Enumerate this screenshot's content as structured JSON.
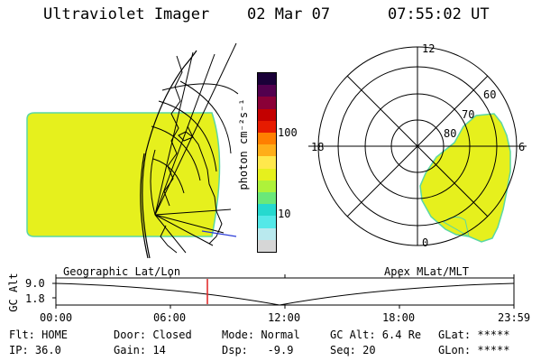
{
  "header": {
    "title": "Ultraviolet Imager",
    "date": "02 Mar 07",
    "time": "07:55:02 UT"
  },
  "colorbar": {
    "unit_label": "photon cm⁻²s⁻¹",
    "tick_100": "100",
    "tick_10": "10",
    "colors": [
      "#d6d6d6",
      "#b9e9ee",
      "#54e8e8",
      "#26d9cf",
      "#6ae879",
      "#aef23a",
      "#e6f01d",
      "#ffe84c",
      "#ffae19",
      "#ff7f00",
      "#e61b00",
      "#c30000",
      "#8a0037",
      "#52004e",
      "#1a0038"
    ]
  },
  "geographic_map": {
    "label": "Geographic Lat/Lon",
    "fill_color": "#e6f01d",
    "edge_color": "#5ad7a4"
  },
  "polar_plot": {
    "label": "Apex MLat/MLT",
    "mlt_labels": {
      "top": "12",
      "left": "18",
      "right": "6",
      "bottom": "0"
    },
    "lat_labels": [
      "60",
      "70",
      "80"
    ]
  },
  "timeline": {
    "axis_label": "GC Alt",
    "tick_high": "9.0",
    "tick_low": "1.8",
    "time_ticks": [
      "00:00",
      "06:00",
      "12:00",
      "18:00",
      "23:59"
    ],
    "current_marker_color": "#e02020"
  },
  "info": {
    "row1": [
      "Flt: HOME",
      "Door: Closed",
      "Mode: Normal",
      "GC Alt: 6.4 Re",
      "GLat: *****"
    ],
    "row2": [
      "IP: 36.0",
      "Gain: 14",
      "Dsp:   -9.9",
      "Seq: 20",
      "GLon: *****"
    ]
  }
}
